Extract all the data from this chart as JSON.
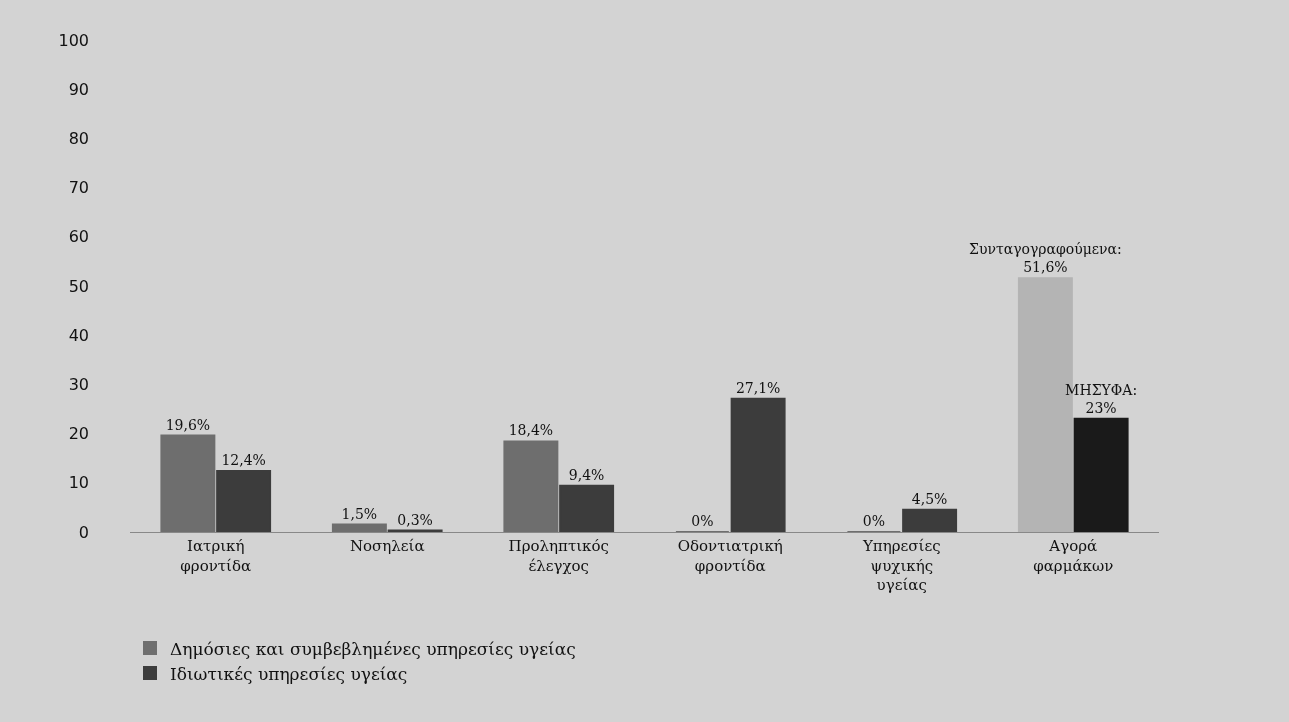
{
  "chart_data": {
    "type": "bar",
    "categories": [
      "Ιατρική φροντίδα",
      "Νοσηλεία",
      "Προληπτικός έλεγχος",
      "Οδοντιατρική φροντίδα",
      "Υπηρεσίες ψυχικής υγείας",
      "Αγορά φαρμάκων"
    ],
    "series": [
      {
        "name": "Δημόσιες και συμβεβλημένες υπηρεσίες υγείας",
        "colors": [
          "#6e6e6e",
          "#6e6e6e",
          "#6e6e6e",
          "#6e6e6e",
          "#6e6e6e",
          "#b4b4b4"
        ],
        "values": [
          19.6,
          1.5,
          18.4,
          0,
          0,
          51.6
        ],
        "value_labels": [
          "19,6%",
          "1,5%",
          "18,4%",
          "0%",
          "0%",
          "Συνταγογραφούμενα: 51,6%"
        ]
      },
      {
        "name": "Ιδιωτικές υπηρεσίες υγείας",
        "colors": [
          "#3c3c3c",
          "#3c3c3c",
          "#3c3c3c",
          "#3c3c3c",
          "#3c3c3c",
          "#1a1a1a"
        ],
        "values": [
          12.4,
          0.3,
          9.4,
          27.1,
          4.5,
          23
        ],
        "value_labels": [
          "12,4%",
          "0,3%",
          "9,4%",
          "27,1%",
          "4,5%",
          "ΜΗΣΥΦΑ: 23%"
        ]
      }
    ],
    "ylim": [
      0,
      100
    ],
    "yticks": [
      0,
      10,
      20,
      30,
      40,
      50,
      60,
      70,
      80,
      90,
      100
    ],
    "grid": false,
    "legend": "bottom left"
  }
}
